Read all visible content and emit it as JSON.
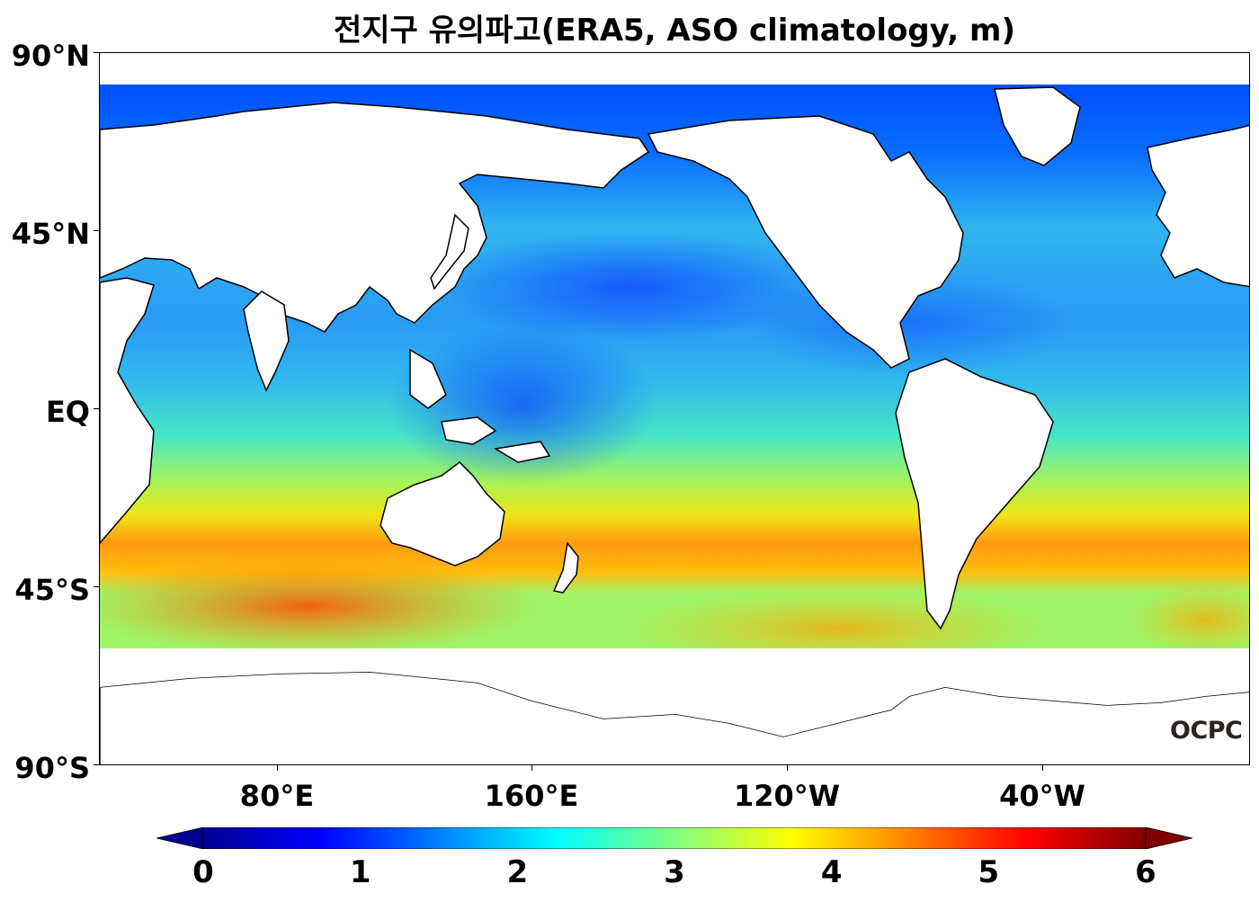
{
  "title": "전지구 유의파고(ERA5, ASO climatology, m)",
  "lat_labels": [
    "90°N",
    "45°N",
    "EQ",
    "45°S",
    "90°S"
  ],
  "lon_labels": [
    "80°E",
    "160°E",
    "120°W",
    "40°W"
  ],
  "colorbar": {
    "labels": [
      "0",
      "1",
      "2",
      "3",
      "4",
      "5",
      "6"
    ],
    "min": 0,
    "max": 6,
    "colors": [
      "#00008f",
      "#0000ff",
      "#0080ff",
      "#00ffff",
      "#80ff80",
      "#ffff00",
      "#ff8000",
      "#ff0000",
      "#800000"
    ]
  },
  "watermark": "OCPC",
  "legend": {
    "ocean_color": "#33c8e8",
    "land_color": "#ffffff",
    "coast_color": "#000000"
  }
}
